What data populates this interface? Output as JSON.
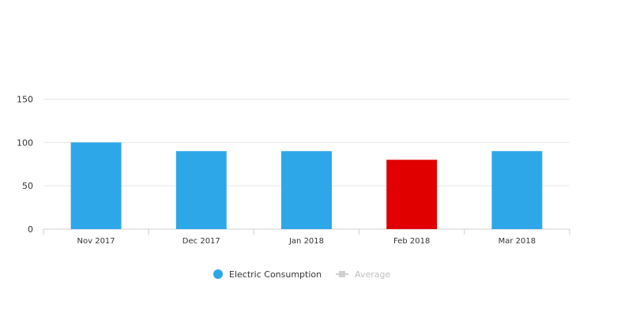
{
  "chart_data": {
    "type": "bar",
    "categories": [
      "Nov 2017",
      "Dec 2017",
      "Jan 2018",
      "Feb 2018",
      "Mar 2018"
    ],
    "series": [
      {
        "name": "Electric Consumption",
        "values": [
          100,
          90,
          90,
          80,
          90
        ],
        "color": "#2ea7e8",
        "highlight_color": "#e10000",
        "highlight_index": 3
      }
    ],
    "yticks": [
      0,
      50,
      100,
      150
    ],
    "ylim": [
      0,
      165
    ],
    "grid": true,
    "legend_position": "bottom-center"
  },
  "legend": {
    "items": [
      {
        "label": "Electric Consumption",
        "color": "#2ea7e8",
        "style": "dot",
        "active": true
      },
      {
        "label": "Average",
        "color": "#d0d0d0",
        "style": "line",
        "active": false
      }
    ]
  }
}
